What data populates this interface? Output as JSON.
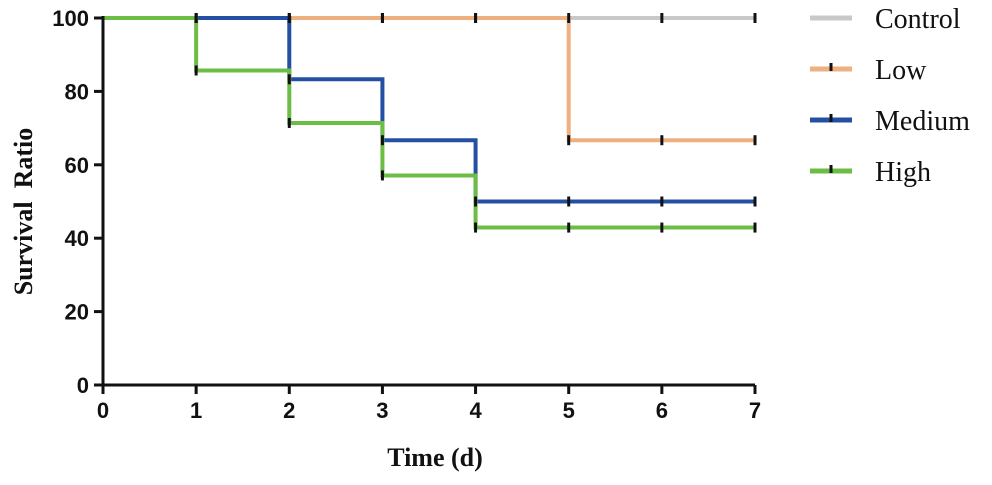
{
  "chart_data": {
    "type": "line",
    "step": true,
    "xlabel": "Time (d)",
    "ylabel": "Survival  Ratio",
    "xlim": [
      0,
      7
    ],
    "ylim": [
      0,
      100
    ],
    "x_ticks": [
      "0",
      "1",
      "2",
      "3",
      "4",
      "5",
      "6",
      "7"
    ],
    "y_ticks": [
      "0",
      "20",
      "40",
      "60",
      "80",
      "100"
    ],
    "grid": false,
    "legend_position": "right",
    "series": [
      {
        "name": "Control",
        "color": "#c8c8c8",
        "x": [
          0,
          1,
          2,
          3,
          4,
          5,
          6,
          7
        ],
        "y": [
          100,
          100,
          100,
          100,
          100,
          100,
          100,
          100
        ]
      },
      {
        "name": "Low",
        "color": "#efb07f",
        "x": [
          0,
          1,
          2,
          3,
          4,
          5,
          6,
          7
        ],
        "y": [
          100,
          100,
          100,
          100,
          100,
          66.7,
          66.7,
          66.7
        ]
      },
      {
        "name": "Medium",
        "color": "#2450a4",
        "x": [
          0,
          1,
          2,
          3,
          4,
          5,
          6,
          7
        ],
        "y": [
          100,
          100,
          83.3,
          66.7,
          50,
          50,
          50,
          50
        ]
      },
      {
        "name": "High",
        "color": "#6cbd45",
        "x": [
          0,
          1,
          2,
          3,
          4,
          5,
          6,
          7
        ],
        "y": [
          100,
          85.7,
          71.4,
          57.1,
          42.9,
          42.9,
          42.9,
          42.9
        ]
      }
    ]
  }
}
